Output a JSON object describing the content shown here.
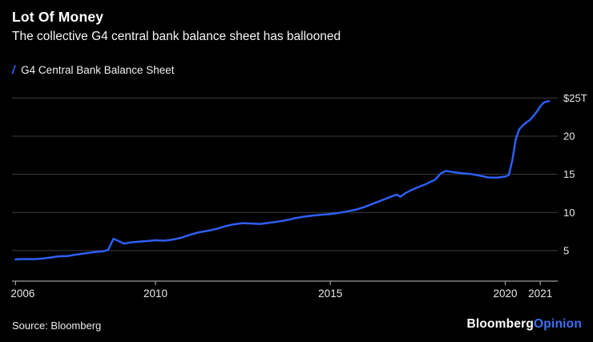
{
  "chart_data": {
    "type": "line",
    "title": "Lot Of Money",
    "subtitle": "The collective G4 central bank balance sheet has ballooned",
    "legend_marker": "/",
    "legend_position": "top-left",
    "grid": true,
    "xlim": [
      2005.9,
      2021.5
    ],
    "ylim": [
      1.0,
      26.3
    ],
    "x_ticks": [
      2006,
      2010,
      2015,
      2020,
      2021
    ],
    "x_tick_labels": [
      "2006",
      "2010",
      "2015",
      "2020",
      "2021"
    ],
    "y_ticks": [
      5,
      10,
      15,
      20,
      25
    ],
    "y_tick_labels": [
      "5",
      "10",
      "15",
      "20",
      "$25T"
    ],
    "colors": {
      "background": "#000000",
      "grid": "#3d3d3d",
      "axis": "#9e9e9e",
      "tick_text": "#e8e8e8"
    },
    "series": [
      {
        "name": "G4 Central Bank Balance Sheet",
        "color": "#2E5EF3",
        "x": [
          2006.0,
          2006.25,
          2006.5,
          2006.75,
          2007.0,
          2007.25,
          2007.5,
          2007.75,
          2008.0,
          2008.25,
          2008.5,
          2008.65,
          2008.8,
          2008.95,
          2009.1,
          2009.25,
          2009.5,
          2009.75,
          2010.0,
          2010.25,
          2010.5,
          2010.75,
          2011.0,
          2011.25,
          2011.5,
          2011.75,
          2012.0,
          2012.25,
          2012.5,
          2012.75,
          2013.0,
          2013.25,
          2013.5,
          2013.75,
          2014.0,
          2014.25,
          2014.5,
          2014.75,
          2015.0,
          2015.25,
          2015.5,
          2015.75,
          2016.0,
          2016.25,
          2016.5,
          2016.75,
          2016.9,
          2017.0,
          2017.15,
          2017.3,
          2017.5,
          2017.75,
          2018.0,
          2018.15,
          2018.3,
          2018.5,
          2018.75,
          2019.0,
          2019.25,
          2019.5,
          2019.75,
          2020.0,
          2020.1,
          2020.2,
          2020.3,
          2020.4,
          2020.5,
          2020.6,
          2020.7,
          2020.8,
          2020.9,
          2021.0,
          2021.1,
          2021.25
        ],
        "values": [
          3.85,
          3.9,
          3.88,
          3.95,
          4.1,
          4.25,
          4.3,
          4.5,
          4.65,
          4.8,
          4.9,
          5.1,
          6.55,
          6.25,
          5.9,
          6.05,
          6.15,
          6.25,
          6.35,
          6.3,
          6.45,
          6.7,
          7.1,
          7.4,
          7.6,
          7.85,
          8.2,
          8.45,
          8.6,
          8.55,
          8.5,
          8.65,
          8.8,
          9.0,
          9.25,
          9.45,
          9.6,
          9.7,
          9.8,
          9.95,
          10.15,
          10.4,
          10.75,
          11.2,
          11.65,
          12.1,
          12.35,
          12.05,
          12.55,
          12.9,
          13.3,
          13.75,
          14.3,
          15.1,
          15.45,
          15.3,
          15.15,
          15.05,
          14.85,
          14.6,
          14.55,
          14.7,
          14.9,
          16.8,
          19.6,
          20.9,
          21.4,
          21.8,
          22.1,
          22.6,
          23.2,
          23.9,
          24.4,
          24.6
        ]
      }
    ]
  },
  "footer": {
    "source": "Source: Bloomberg",
    "logo_primary": "Bloomberg",
    "logo_secondary": "Opinion",
    "logo_secondary_color": "#3E6FF6"
  }
}
